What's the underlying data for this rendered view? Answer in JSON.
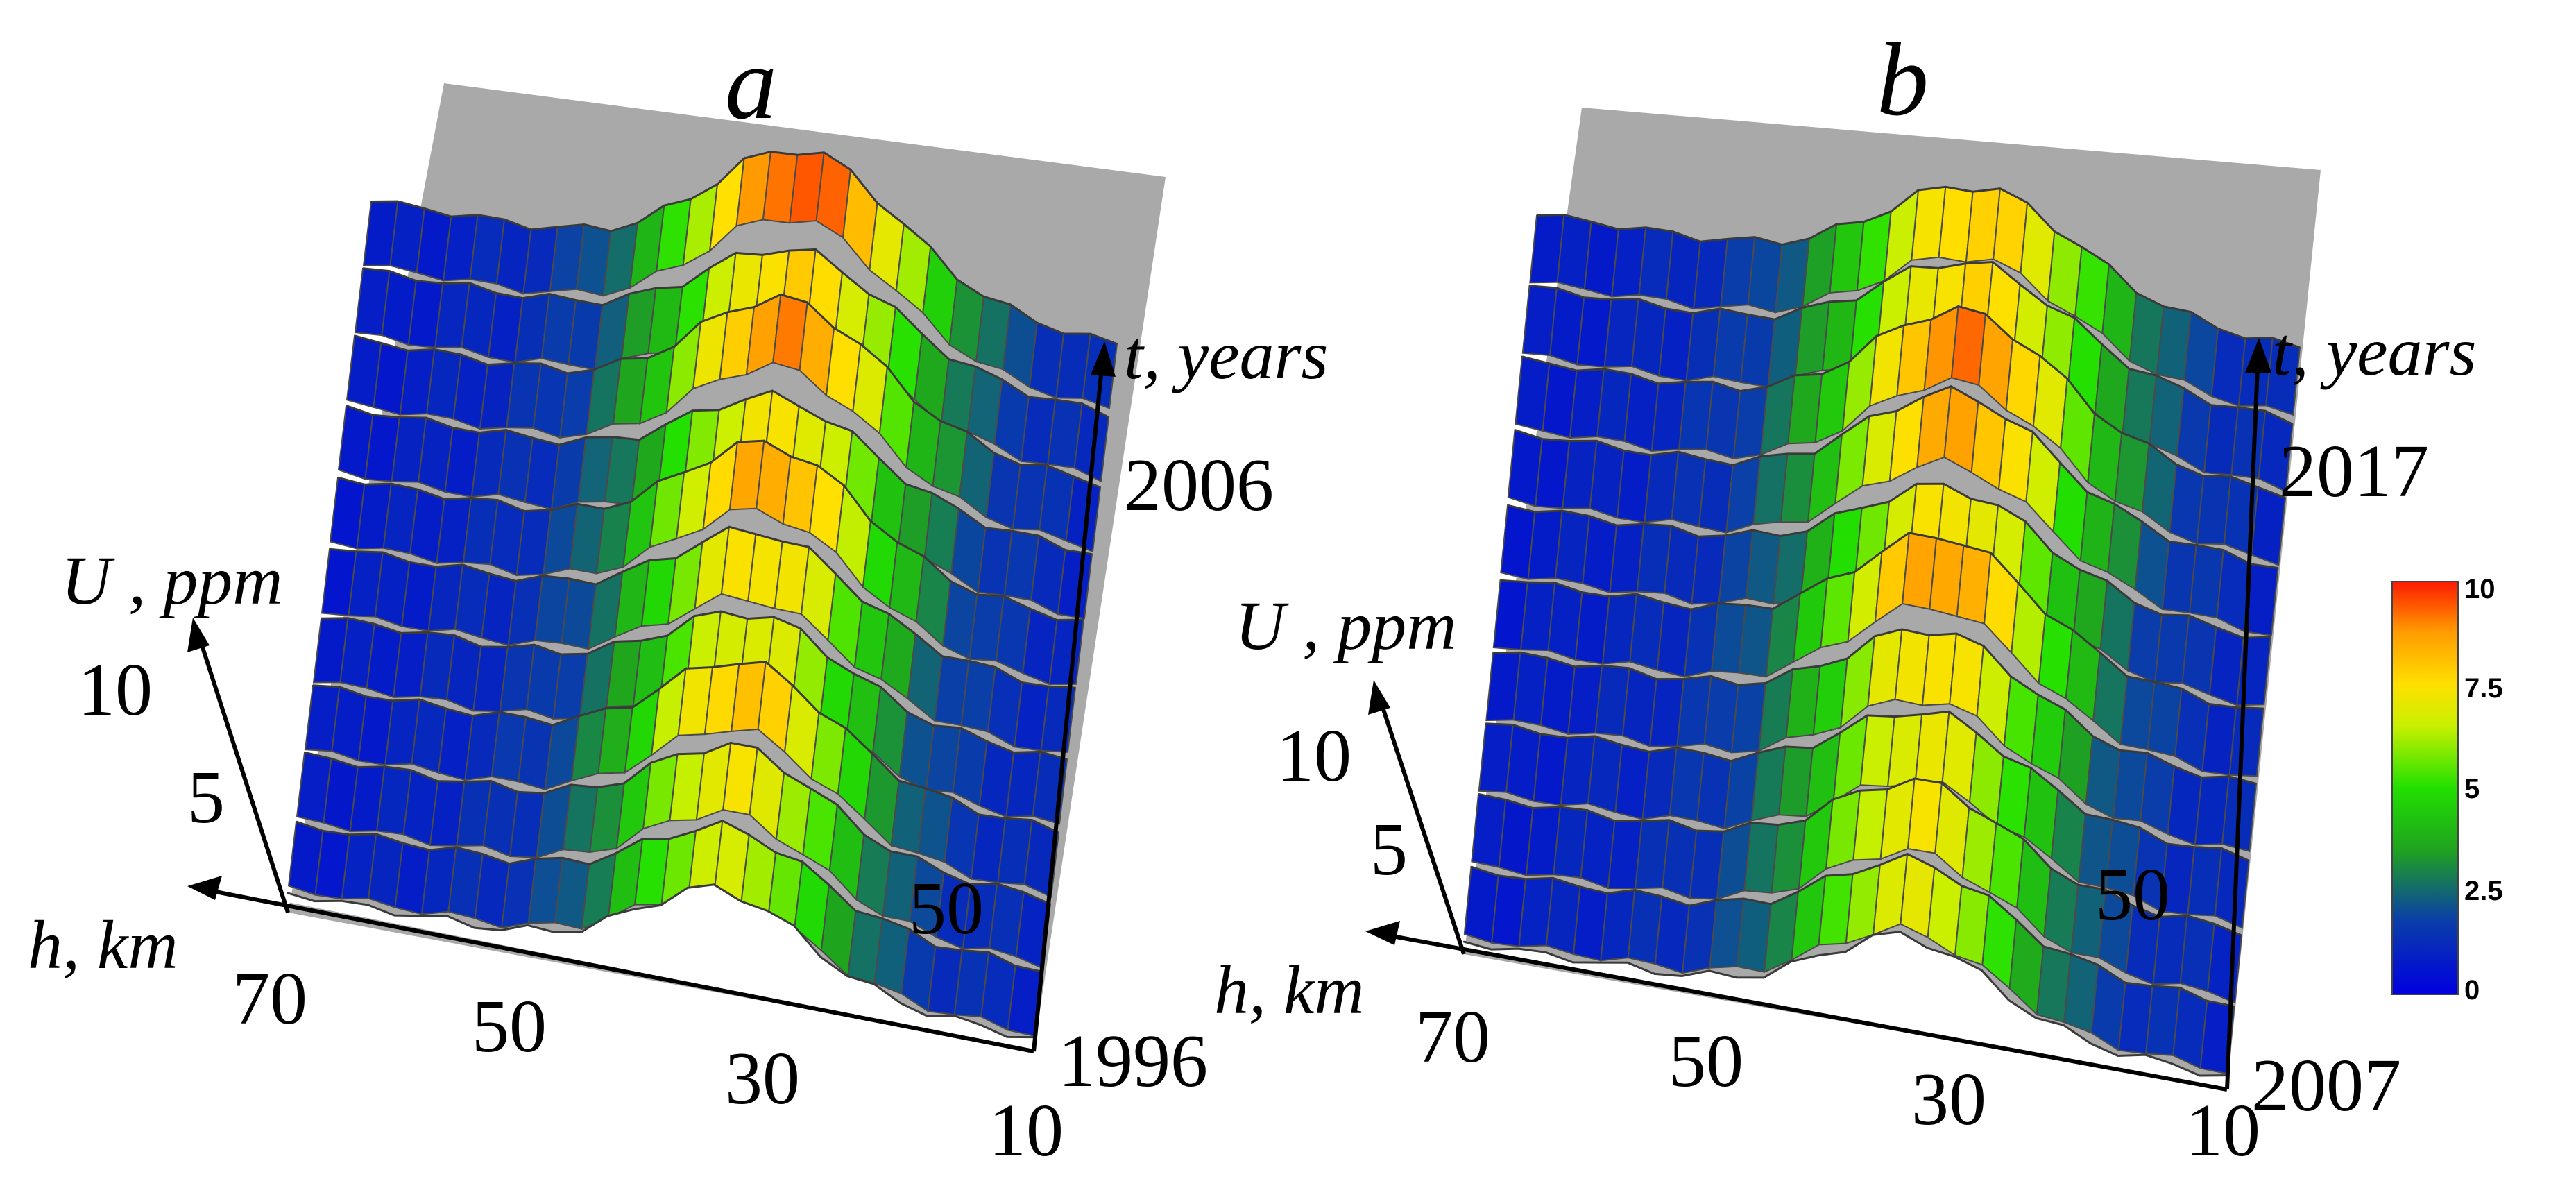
{
  "colors": {
    "backplane": "#a9a9a9",
    "grid": "#4a4a4a",
    "axis": "#000000",
    "colormap": [
      "#0000e0",
      "#0a3fa8",
      "#1fa31f",
      "#22e000",
      "#c8f000",
      "#ffe000",
      "#ff9a00",
      "#ff1a00"
    ]
  },
  "chart_data": [
    {
      "type": "surface3d",
      "panel_label": "a",
      "z_axis_title": "U , ppm",
      "z_ticks": [
        "10",
        "5"
      ],
      "z_range": [
        0,
        10
      ],
      "h_axis_title": "h, km",
      "h_ticks": [
        "70",
        "50",
        "30",
        "10"
      ],
      "h_range": [
        70,
        10
      ],
      "h_inner_label": "50",
      "t_axis_title": "t, years",
      "t_ticks": [
        "2006",
        "1996"
      ],
      "t_range": [
        1996,
        2006
      ],
      "peak_altitude_km": 35,
      "peak_value_ppm": 9.5,
      "rows": [
        {
          "year": 1996,
          "peak": 6.5
        },
        {
          "year": 1997,
          "peak": 6.0
        },
        {
          "year": 1998,
          "peak": 6.8
        },
        {
          "year": 1999,
          "peak": 7.8
        },
        {
          "year": 2000,
          "peak": 6.4
        },
        {
          "year": 2001,
          "peak": 7.2
        },
        {
          "year": 2002,
          "peak": 8.4
        },
        {
          "year": 2003,
          "peak": 6.9
        },
        {
          "year": 2004,
          "peak": 8.8
        },
        {
          "year": 2005,
          "peak": 7.5
        },
        {
          "year": 2006,
          "peak": 9.5
        }
      ]
    },
    {
      "type": "surface3d",
      "panel_label": "b",
      "z_axis_title": "U , ppm",
      "z_ticks": [
        "10",
        "5"
      ],
      "z_range": [
        0,
        10
      ],
      "h_axis_title": "h, km",
      "h_ticks": [
        "70",
        "50",
        "30",
        "10"
      ],
      "h_range": [
        70,
        10
      ],
      "h_inner_label": "50",
      "t_axis_title": "t, years",
      "t_ticks": [
        "2017",
        "2007"
      ],
      "t_range": [
        2007,
        2017
      ],
      "peak_altitude_km": 35,
      "peak_value_ppm": 9.0,
      "rows": [
        {
          "year": 2007,
          "peak": 6.2
        },
        {
          "year": 2008,
          "peak": 6.4
        },
        {
          "year": 2009,
          "peak": 6.8
        },
        {
          "year": 2010,
          "peak": 6.6
        },
        {
          "year": 2011,
          "peak": 7.2
        },
        {
          "year": 2012,
          "peak": 8.6
        },
        {
          "year": 2013,
          "peak": 7.0
        },
        {
          "year": 2014,
          "peak": 8.4
        },
        {
          "year": 2015,
          "peak": 9.0
        },
        {
          "year": 2016,
          "peak": 7.4
        },
        {
          "year": 2017,
          "peak": 7.6
        }
      ]
    }
  ],
  "colorbar": {
    "ticks": [
      "10",
      "7.5",
      "5",
      "2.5",
      "0"
    ],
    "range": [
      0,
      10
    ]
  }
}
